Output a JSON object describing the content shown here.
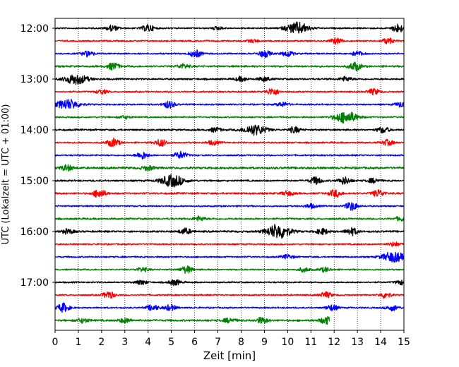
{
  "chart_data": {
    "type": "line",
    "chart_kind": "helicorder",
    "xlabel": "Zeit  [min]",
    "ylabel": "UTC (Lokalzeit = UTC + 01:00)",
    "xlim": [
      0,
      15
    ],
    "x_ticks": [
      "0",
      "1",
      "2",
      "3",
      "4",
      "5",
      "6",
      "7",
      "8",
      "9",
      "10",
      "11",
      "12",
      "13",
      "14",
      "15"
    ],
    "y_ticks": [
      "12:00",
      "13:00",
      "14:00",
      "15:00",
      "16:00",
      "17:00"
    ],
    "grid": "vertical dotted",
    "line_minutes": 15,
    "trace_colors": [
      "#000000",
      "#ff0000",
      "#0000ff",
      "#008000"
    ],
    "traces": [
      {
        "start": "12:00",
        "color": "#000000",
        "end_min": 15,
        "noise": 1.0,
        "events": [
          {
            "t": 2.45,
            "a": 4
          },
          {
            "t": 4.0,
            "a": 5
          },
          {
            "t": 10.42,
            "a": 8
          },
          {
            "t": 14.75,
            "a": 6
          },
          {
            "t": 7.0,
            "a": 2
          }
        ]
      },
      {
        "start": "12:15",
        "color": "#ff0000",
        "end_min": 15,
        "noise": 1.0,
        "events": [
          {
            "t": 12.1,
            "a": 4
          },
          {
            "t": 14.3,
            "a": 4
          },
          {
            "t": 8.5,
            "a": 2
          }
        ]
      },
      {
        "start": "12:30",
        "color": "#0000ff",
        "end_min": 15,
        "noise": 1.0,
        "events": [
          {
            "t": 1.4,
            "a": 4
          },
          {
            "t": 6.05,
            "a": 5
          },
          {
            "t": 9.0,
            "a": 5
          },
          {
            "t": 10.0,
            "a": 4
          },
          {
            "t": 13.0,
            "a": 3
          }
        ]
      },
      {
        "start": "12:45",
        "color": "#008000",
        "end_min": 15,
        "noise": 1.2,
        "events": [
          {
            "t": 2.5,
            "a": 5
          },
          {
            "t": 5.5,
            "a": 3
          },
          {
            "t": 12.9,
            "a": 6
          }
        ]
      },
      {
        "start": "13:00",
        "color": "#000000",
        "end_min": 15,
        "noise": 1.2,
        "events": [
          {
            "t": 0.9,
            "a": 7
          },
          {
            "t": 8.0,
            "a": 3
          },
          {
            "t": 9.0,
            "a": 3
          },
          {
            "t": 12.5,
            "a": 3
          }
        ]
      },
      {
        "start": "13:15",
        "color": "#ff0000",
        "end_min": 15,
        "noise": 1.0,
        "events": [
          {
            "t": 2.0,
            "a": 3
          },
          {
            "t": 9.35,
            "a": 5
          },
          {
            "t": 13.7,
            "a": 4
          }
        ]
      },
      {
        "start": "13:30",
        "color": "#0000ff",
        "end_min": 15,
        "noise": 1.0,
        "events": [
          {
            "t": 0.55,
            "a": 7
          },
          {
            "t": 4.9,
            "a": 5
          },
          {
            "t": 9.8,
            "a": 3
          },
          {
            "t": 14.9,
            "a": 4
          }
        ]
      },
      {
        "start": "13:45",
        "color": "#008000",
        "end_min": 15,
        "noise": 1.0,
        "events": [
          {
            "t": 3.0,
            "a": 2
          },
          {
            "t": 12.5,
            "a": 8
          }
        ]
      },
      {
        "start": "14:00",
        "color": "#000000",
        "end_min": 15,
        "noise": 1.2,
        "events": [
          {
            "t": 8.6,
            "a": 7
          },
          {
            "t": 10.3,
            "a": 4
          },
          {
            "t": 14.1,
            "a": 4
          },
          {
            "t": 6.9,
            "a": 3
          }
        ]
      },
      {
        "start": "14:15",
        "color": "#ff0000",
        "end_min": 15,
        "noise": 1.0,
        "events": [
          {
            "t": 2.5,
            "a": 6
          },
          {
            "t": 4.55,
            "a": 5
          },
          {
            "t": 14.3,
            "a": 4
          },
          {
            "t": 6.8,
            "a": 3
          }
        ]
      },
      {
        "start": "14:30",
        "color": "#0000ff",
        "end_min": 15,
        "noise": 1.0,
        "events": [
          {
            "t": 3.75,
            "a": 5
          },
          {
            "t": 5.4,
            "a": 5
          }
        ]
      },
      {
        "start": "14:45",
        "color": "#008000",
        "end_min": 15,
        "noise": 1.5,
        "events": [
          {
            "t": 0.5,
            "a": 4
          },
          {
            "t": 4.0,
            "a": 3
          }
        ]
      },
      {
        "start": "15:00",
        "color": "#000000",
        "end_min": 15,
        "noise": 1.2,
        "events": [
          {
            "t": 5.05,
            "a": 8
          },
          {
            "t": 11.2,
            "a": 5
          },
          {
            "t": 12.45,
            "a": 5
          },
          {
            "t": 13.7,
            "a": 3
          }
        ]
      },
      {
        "start": "15:15",
        "color": "#ff0000",
        "end_min": 15,
        "noise": 1.2,
        "events": [
          {
            "t": 1.9,
            "a": 6
          },
          {
            "t": 12.05,
            "a": 5
          },
          {
            "t": 13.9,
            "a": 5
          },
          {
            "t": 10.0,
            "a": 3
          }
        ]
      },
      {
        "start": "15:30",
        "color": "#0000ff",
        "end_min": 15,
        "noise": 1.0,
        "events": [
          {
            "t": 12.75,
            "a": 6
          },
          {
            "t": 11.0,
            "a": 3
          }
        ]
      },
      {
        "start": "15:45",
        "color": "#008000",
        "end_min": 15,
        "noise": 1.2,
        "events": [
          {
            "t": 6.2,
            "a": 3
          },
          {
            "t": 14.9,
            "a": 3
          }
        ]
      },
      {
        "start": "16:00",
        "color": "#000000",
        "end_min": 15,
        "noise": 1.3,
        "events": [
          {
            "t": 0.55,
            "a": 3
          },
          {
            "t": 5.6,
            "a": 4
          },
          {
            "t": 9.6,
            "a": 10
          },
          {
            "t": 11.5,
            "a": 4
          },
          {
            "t": 12.75,
            "a": 5
          }
        ]
      },
      {
        "start": "16:15",
        "color": "#ff0000",
        "end_min": 15,
        "noise": 1.0,
        "events": [
          {
            "t": 14.6,
            "a": 3
          }
        ]
      },
      {
        "start": "16:30",
        "color": "#0000ff",
        "end_min": 15,
        "noise": 1.0,
        "events": [
          {
            "t": 10.0,
            "a": 3
          },
          {
            "t": 14.55,
            "a": 7
          }
        ]
      },
      {
        "start": "16:45",
        "color": "#008000",
        "end_min": 15,
        "noise": 1.0,
        "events": [
          {
            "t": 3.75,
            "a": 3
          },
          {
            "t": 5.65,
            "a": 5
          },
          {
            "t": 10.7,
            "a": 3
          },
          {
            "t": 11.6,
            "a": 3
          }
        ]
      },
      {
        "start": "17:00",
        "color": "#000000",
        "end_min": 15,
        "noise": 1.0,
        "events": [
          {
            "t": 3.7,
            "a": 3
          },
          {
            "t": 5.15,
            "a": 4
          },
          {
            "t": 14.9,
            "a": 3
          }
        ]
      },
      {
        "start": "17:15",
        "color": "#ff0000",
        "end_min": 15,
        "noise": 1.0,
        "events": [
          {
            "t": 2.3,
            "a": 5
          },
          {
            "t": 11.65,
            "a": 4
          },
          {
            "t": 14.2,
            "a": 4
          }
        ]
      },
      {
        "start": "17:30",
        "color": "#0000ff",
        "end_min": 15,
        "noise": 1.0,
        "events": [
          {
            "t": 0.35,
            "a": 6
          },
          {
            "t": 4.2,
            "a": 4
          },
          {
            "t": 4.95,
            "a": 4
          },
          {
            "t": 11.9,
            "a": 4
          },
          {
            "t": 14.5,
            "a": 4
          }
        ]
      },
      {
        "start": "17:45",
        "color": "#008000",
        "end_min": 11.8,
        "noise": 1.3,
        "events": [
          {
            "t": 1.2,
            "a": 3
          },
          {
            "t": 3.0,
            "a": 3
          },
          {
            "t": 7.5,
            "a": 3
          },
          {
            "t": 8.9,
            "a": 4
          },
          {
            "t": 11.65,
            "a": 5
          }
        ]
      }
    ]
  }
}
